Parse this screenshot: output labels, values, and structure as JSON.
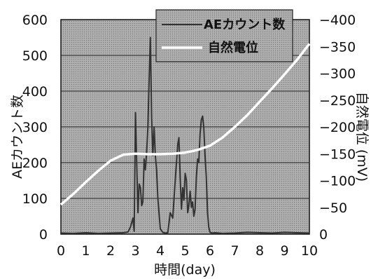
{
  "chart_data": {
    "type": "line",
    "xlabel": "時間(day)",
    "ylabel_left": "AEカウント数",
    "ylabel_right": "自然電位 (mV)",
    "xlim": [
      0,
      10
    ],
    "ylim_left": [
      0,
      600
    ],
    "ylim_right": [
      0,
      -400
    ],
    "x_ticks": [
      "0",
      "1",
      "2",
      "3",
      "4",
      "5",
      "6",
      "7",
      "8",
      "9",
      "10"
    ],
    "y_left_ticks": [
      "0",
      "100",
      "200",
      "300",
      "400",
      "500",
      "600"
    ],
    "y_right_ticks": [
      "0",
      "−50",
      "−100",
      "−150",
      "−200",
      "−250",
      "−300",
      "−350",
      "−400"
    ],
    "grid": true,
    "legend_position": "top-right",
    "series": [
      {
        "name": "AEカウント数",
        "axis": "left",
        "color": "#333333",
        "x": [
          0,
          0.5,
          1,
          1.5,
          2,
          2.5,
          2.7,
          2.8,
          2.9,
          2.95,
          3.0,
          3.05,
          3.1,
          3.15,
          3.2,
          3.25,
          3.3,
          3.35,
          3.4,
          3.45,
          3.5,
          3.55,
          3.6,
          3.65,
          3.7,
          3.75,
          3.8,
          3.85,
          3.9,
          4.0,
          4.1,
          4.2,
          4.3,
          4.4,
          4.5,
          4.6,
          4.7,
          4.75,
          4.8,
          4.85,
          4.9,
          4.95,
          5.0,
          5.05,
          5.1,
          5.15,
          5.2,
          5.25,
          5.3,
          5.35,
          5.4,
          5.45,
          5.5,
          5.55,
          5.6,
          5.65,
          5.7,
          5.75,
          5.8,
          5.85,
          5.9,
          5.95,
          6.0,
          6.1,
          6.2,
          6.5,
          7,
          7.5,
          8,
          8.5,
          9,
          9.5,
          10
        ],
        "values": [
          3,
          2,
          4,
          2,
          3,
          4,
          6,
          20,
          45,
          8,
          340,
          200,
          60,
          140,
          130,
          80,
          90,
          210,
          180,
          230,
          300,
          430,
          550,
          330,
          220,
          300,
          220,
          180,
          100,
          15,
          5,
          3,
          4,
          60,
          45,
          150,
          250,
          270,
          160,
          70,
          130,
          95,
          170,
          150,
          60,
          80,
          120,
          75,
          90,
          50,
          70,
          160,
          210,
          200,
          280,
          320,
          330,
          300,
          220,
          160,
          60,
          20,
          5,
          3,
          4,
          2,
          3,
          5,
          4,
          3,
          5,
          4,
          3
        ]
      },
      {
        "name": "自然電位",
        "axis": "right",
        "color": "#ffffff",
        "x": [
          0,
          0.5,
          1,
          1.5,
          2,
          2.5,
          3,
          3.5,
          4,
          4.5,
          5,
          5.5,
          6,
          6.5,
          7,
          7.5,
          8,
          8.5,
          9,
          9.5,
          10
        ],
        "values": [
          -55,
          -75,
          -97,
          -118,
          -137,
          -148,
          -150,
          -149,
          -149,
          -150,
          -152,
          -157,
          -165,
          -180,
          -200,
          -222,
          -247,
          -272,
          -298,
          -325,
          -355
        ]
      }
    ]
  }
}
